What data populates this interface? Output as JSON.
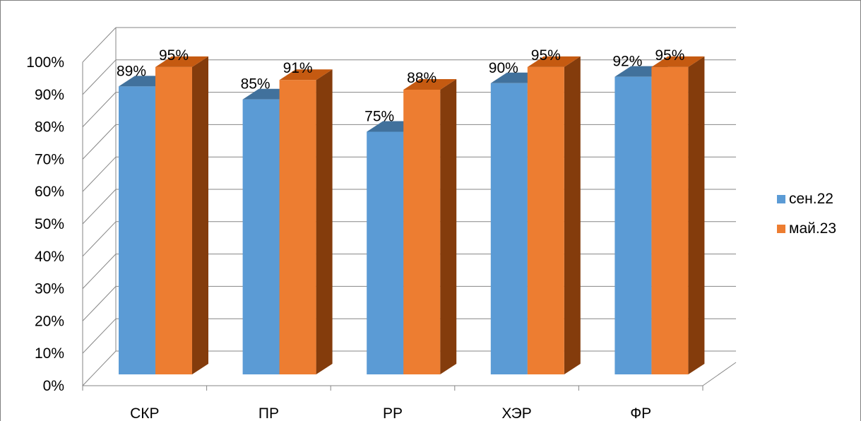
{
  "chart_data": {
    "type": "bar",
    "title": "",
    "xlabel": "",
    "ylabel": "",
    "categories": [
      "СКР",
      "ПР",
      "РР",
      "ХЭР",
      "ФР"
    ],
    "series": [
      {
        "name": "сен.22",
        "values": [
          89,
          85,
          75,
          90,
          92
        ],
        "labels": [
          "89%",
          "85%",
          "75%",
          "90%",
          "92%"
        ],
        "color": "#5b9bd5",
        "top_color": "#41719c",
        "side_color": "#2f5f8f"
      },
      {
        "name": "май.23",
        "values": [
          95,
          91,
          88,
          95,
          95
        ],
        "labels": [
          "95%",
          "91%",
          "88%",
          "95%",
          "95%"
        ],
        "color": "#ed7d31",
        "top_color": "#c55a11",
        "side_color": "#843c0c"
      }
    ],
    "ylim": [
      0,
      100
    ],
    "yticks": [
      "0%",
      "10%",
      "20%",
      "30%",
      "40%",
      "50%",
      "60%",
      "70%",
      "80%",
      "90%",
      "100%"
    ],
    "grid": true,
    "legend_position": "right",
    "style": "3d-clustered-column"
  }
}
